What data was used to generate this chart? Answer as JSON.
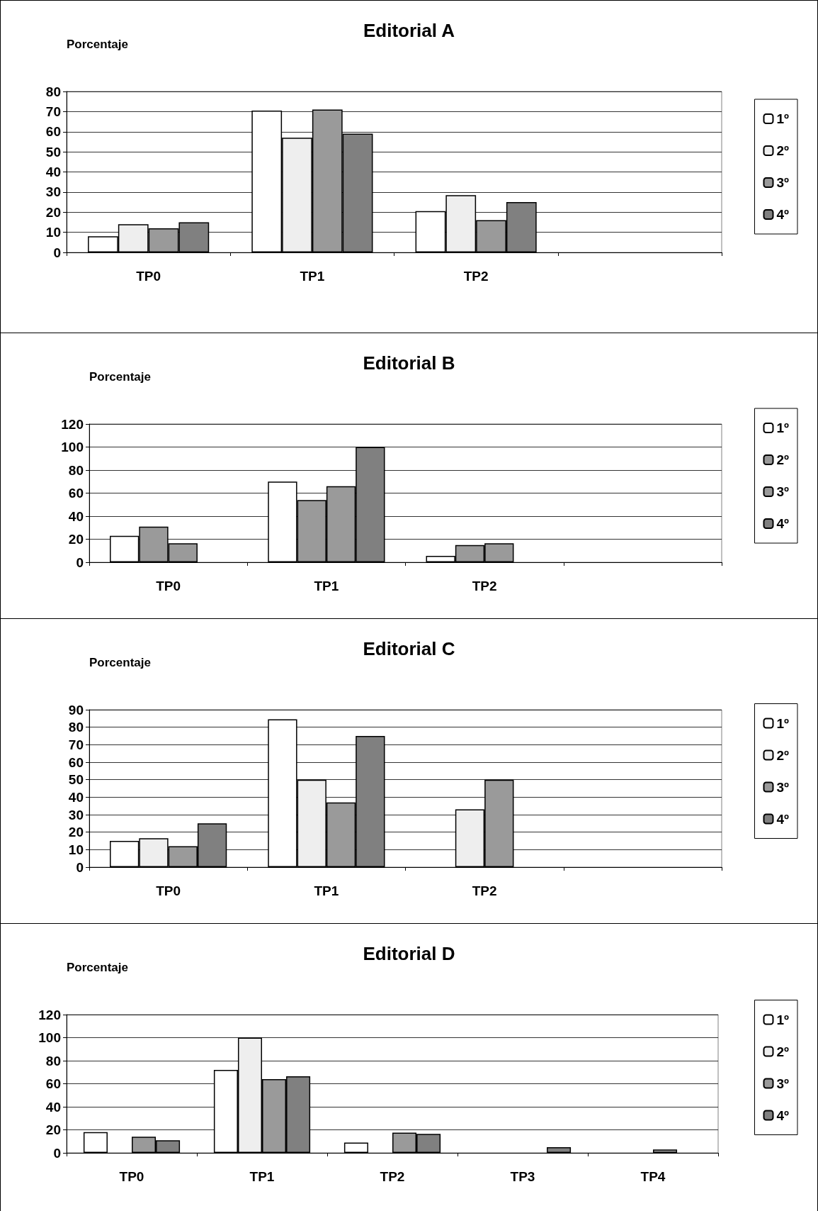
{
  "chart_data": [
    {
      "type": "bar",
      "title": "Editorial A",
      "ylabel": "Porcentaje",
      "categories": [
        "TP0",
        "TP1",
        "TP2",
        null
      ],
      "ylim": [
        0,
        80
      ],
      "yticks": [
        0,
        10,
        20,
        30,
        40,
        50,
        60,
        70,
        80
      ],
      "grid": "y",
      "legend": "right",
      "series": [
        {
          "name": "1º",
          "color": "#ffffff",
          "values": [
            8,
            70.5,
            20.5,
            null
          ]
        },
        {
          "name": "2º",
          "color": "#eeeeee",
          "values": [
            14,
            57,
            28.5,
            null
          ]
        },
        {
          "name": "3º",
          "color": "#9a9a9a",
          "values": [
            12,
            71,
            16,
            null
          ]
        },
        {
          "name": "4º",
          "color": "#808080",
          "values": [
            15,
            59,
            25,
            null
          ]
        }
      ]
    },
    {
      "type": "bar",
      "title": "Editorial B",
      "ylabel": "Porcentaje",
      "categories": [
        "TP0",
        "TP1",
        "TP2",
        null
      ],
      "ylim": [
        0,
        120
      ],
      "yticks": [
        0,
        20,
        40,
        60,
        80,
        100,
        120
      ],
      "grid": "y",
      "legend": "right",
      "series": [
        {
          "name": "1º",
          "color": "#ffffff",
          "values": [
            23,
            70,
            5.5,
            null
          ]
        },
        {
          "name": "2º",
          "color": "#9a9a9a",
          "values": [
            31,
            54,
            15,
            null
          ]
        },
        {
          "name": "3º",
          "color": "#9a9a9a",
          "values": [
            16.5,
            66,
            16.5,
            null
          ]
        },
        {
          "name": "4º",
          "color": "#808080",
          "values": [
            null,
            100,
            null,
            null
          ]
        }
      ]
    },
    {
      "type": "bar",
      "title": "Editorial C",
      "ylabel": "Porcentaje",
      "categories": [
        "TP0",
        "TP1",
        "TP2",
        null
      ],
      "ylim": [
        0,
        90
      ],
      "yticks": [
        0,
        10,
        20,
        30,
        40,
        50,
        60,
        70,
        80,
        90
      ],
      "grid": "y",
      "legend": "right",
      "series": [
        {
          "name": "1º",
          "color": "#ffffff",
          "values": [
            15,
            84.5,
            null,
            null
          ]
        },
        {
          "name": "2º",
          "color": "#eeeeee",
          "values": [
            16.5,
            50,
            33,
            null
          ]
        },
        {
          "name": "3º",
          "color": "#9a9a9a",
          "values": [
            12,
            37,
            50,
            null
          ]
        },
        {
          "name": "4º",
          "color": "#808080",
          "values": [
            25,
            75,
            null,
            null
          ]
        }
      ]
    },
    {
      "type": "bar",
      "title": "Editorial D",
      "ylabel": "Porcentaje",
      "categories": [
        "TP0",
        "TP1",
        "TP2",
        "TP3",
        "TP4"
      ],
      "ylim": [
        0,
        120
      ],
      "yticks": [
        0,
        20,
        40,
        60,
        80,
        100,
        120
      ],
      "grid": "y",
      "legend": "right",
      "series": [
        {
          "name": "1º",
          "color": "#ffffff",
          "values": [
            18,
            72,
            9,
            null,
            null
          ]
        },
        {
          "name": "2º",
          "color": "#eeeeee",
          "values": [
            null,
            100,
            null,
            null,
            null
          ]
        },
        {
          "name": "3º",
          "color": "#9a9a9a",
          "values": [
            14,
            64,
            17.5,
            null,
            3
          ]
        },
        {
          "name": "4º",
          "color": "#808080",
          "values": [
            11,
            66.5,
            16.5,
            5,
            null
          ]
        }
      ]
    }
  ]
}
